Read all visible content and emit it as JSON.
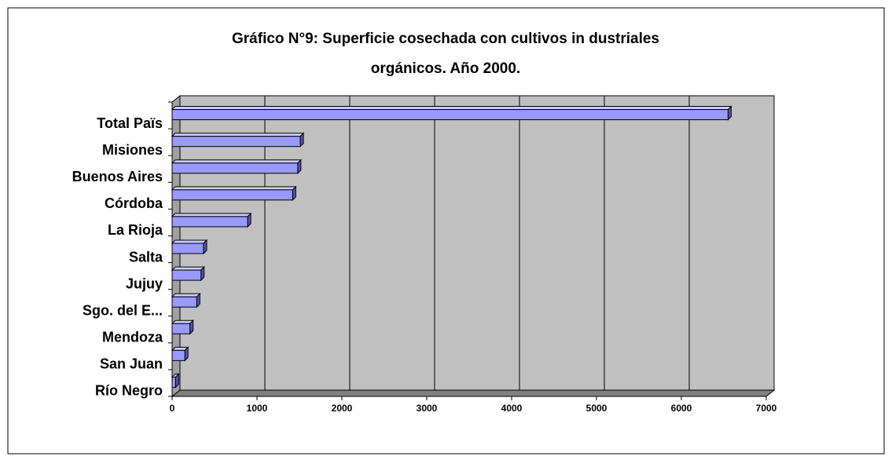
{
  "chart_data": {
    "type": "bar",
    "orientation": "horizontal",
    "title": [
      "Gráfico N°9:   Superficie cosechada con cultivos in dustriales",
      "orgánicos. Año 2000."
    ],
    "categories": [
      "Total Païs",
      "Misiones",
      "Buenos Aires",
      "Córdoba",
      "La Rioja",
      "Salta",
      "Jujuy",
      "Sgo. del E...",
      "Mendoza",
      "San Juan",
      "Río Negro"
    ],
    "values": [
      6550,
      1510,
      1480,
      1420,
      890,
      370,
      340,
      290,
      210,
      150,
      40
    ],
    "color": "#9999ff",
    "xlim": [
      0,
      7000
    ],
    "xticks": [
      0,
      1000,
      2000,
      3000,
      4000,
      5000,
      6000,
      7000
    ],
    "grid": true
  }
}
